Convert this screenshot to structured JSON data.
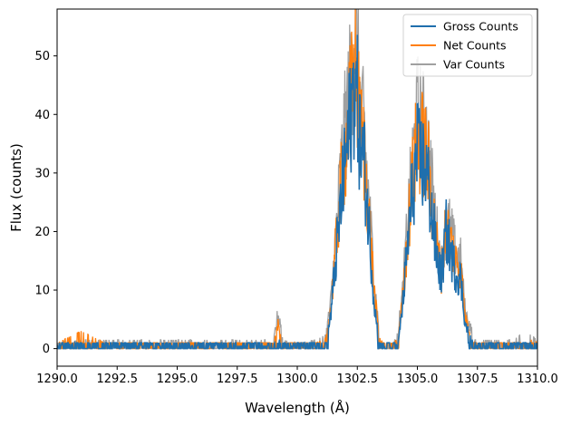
{
  "chart_data": {
    "type": "line",
    "title": "",
    "xlabel": "Wavelength (Å)",
    "ylabel": "Flux (counts)",
    "xlim": [
      1290.0,
      1310.0
    ],
    "ylim": [
      -3,
      58
    ],
    "xticks": [
      1290.0,
      1292.5,
      1295.0,
      1297.5,
      1300.0,
      1302.5,
      1305.0,
      1307.5,
      1310.0
    ],
    "xtick_labels": [
      "1290.0",
      "1292.5",
      "1295.0",
      "1297.5",
      "1300.0",
      "1302.5",
      "1305.0",
      "1307.5",
      "1310.0"
    ],
    "yticks": [
      0,
      10,
      20,
      30,
      40,
      50
    ],
    "ytick_labels": [
      "0",
      "10",
      "20",
      "30",
      "40",
      "50"
    ],
    "grid": false,
    "legend_position": "top-right",
    "series": [
      {
        "name": "Var Counts",
        "color": "#a0a0a0",
        "x": [
          1290.0,
          1291.0,
          1292.0,
          1293.0,
          1294.0,
          1295.0,
          1296.0,
          1297.0,
          1298.0,
          1299.0,
          1299.2,
          1299.4,
          1300.0,
          1300.8,
          1301.2,
          1301.4,
          1301.6,
          1301.8,
          1302.0,
          1302.2,
          1302.4,
          1302.5,
          1302.6,
          1302.8,
          1303.0,
          1303.2,
          1303.4,
          1303.6,
          1303.8,
          1304.0,
          1304.2,
          1304.4,
          1304.6,
          1304.8,
          1305.0,
          1305.2,
          1305.4,
          1305.6,
          1305.8,
          1306.0,
          1306.2,
          1306.4,
          1306.6,
          1306.8,
          1307.0,
          1307.4,
          1308.0,
          1309.0,
          1309.5,
          1310.0
        ],
        "y": [
          1.0,
          1.5,
          1.5,
          1.5,
          1.5,
          1.5,
          1.5,
          1.5,
          1.5,
          1.5,
          6.0,
          1.5,
          1.0,
          1.5,
          2.5,
          8.0,
          19.0,
          30.0,
          38.0,
          45.0,
          55.0,
          48.0,
          42.0,
          36.0,
          24.0,
          12.0,
          3.0,
          1.0,
          0.5,
          1.0,
          3.0,
          10.0,
          22.0,
          32.0,
          40.0,
          38.0,
          36.0,
          28.0,
          20.0,
          14.0,
          22.0,
          20.0,
          16.0,
          15.0,
          6.0,
          1.5,
          1.5,
          1.5,
          3.0,
          1.5
        ]
      },
      {
        "name": "Net Counts",
        "color": "#ff7f0e",
        "x": [
          1290.0,
          1291.0,
          1292.0,
          1293.0,
          1294.0,
          1295.0,
          1296.0,
          1297.0,
          1298.0,
          1299.0,
          1299.2,
          1299.4,
          1300.0,
          1300.8,
          1301.2,
          1301.4,
          1301.6,
          1301.8,
          1302.0,
          1302.2,
          1302.4,
          1302.5,
          1302.6,
          1302.8,
          1303.0,
          1303.2,
          1303.4,
          1303.6,
          1303.8,
          1304.0,
          1304.2,
          1304.4,
          1304.6,
          1304.8,
          1305.0,
          1305.2,
          1305.4,
          1305.6,
          1305.8,
          1306.0,
          1306.2,
          1306.4,
          1306.6,
          1306.8,
          1307.0,
          1307.4,
          1308.0,
          1309.0,
          1309.5,
          1310.0
        ],
        "y": [
          1.0,
          3.0,
          1.0,
          1.0,
          1.0,
          1.0,
          1.0,
          1.0,
          1.0,
          1.0,
          4.0,
          1.0,
          1.0,
          1.0,
          2.0,
          7.0,
          17.0,
          27.0,
          34.0,
          41.0,
          48.0,
          44.0,
          38.0,
          33.0,
          22.0,
          10.0,
          2.0,
          1.0,
          0.5,
          1.0,
          2.0,
          9.0,
          20.0,
          29.0,
          36.0,
          35.0,
          33.0,
          25.0,
          18.0,
          13.0,
          21.0,
          18.0,
          15.0,
          14.0,
          5.0,
          1.0,
          1.0,
          1.0,
          2.0,
          1.0
        ]
      },
      {
        "name": "Gross Counts",
        "color": "#1f6fad",
        "x": [
          1290.0,
          1291.0,
          1292.0,
          1293.0,
          1294.0,
          1295.0,
          1296.0,
          1297.0,
          1298.0,
          1299.0,
          1299.2,
          1299.4,
          1300.0,
          1300.8,
          1301.2,
          1301.4,
          1301.6,
          1301.8,
          1302.0,
          1302.2,
          1302.4,
          1302.5,
          1302.6,
          1302.8,
          1303.0,
          1303.2,
          1303.4,
          1303.6,
          1303.8,
          1304.0,
          1304.2,
          1304.4,
          1304.6,
          1304.8,
          1305.0,
          1305.2,
          1305.4,
          1305.6,
          1305.8,
          1306.0,
          1306.2,
          1306.4,
          1306.6,
          1306.8,
          1307.0,
          1307.4,
          1308.0,
          1309.0,
          1309.5,
          1310.0
        ],
        "y": [
          0.5,
          1.0,
          0.5,
          0.5,
          0.5,
          0.5,
          0.5,
          0.5,
          0.5,
          0.5,
          2.0,
          0.5,
          0.5,
          0.5,
          1.0,
          6.0,
          15.0,
          24.0,
          32.0,
          39.0,
          46.0,
          42.0,
          36.0,
          31.0,
          20.0,
          8.0,
          1.0,
          0.5,
          0.0,
          0.5,
          1.0,
          8.0,
          18.0,
          27.0,
          33.0,
          32.0,
          30.0,
          23.0,
          16.0,
          12.0,
          20.0,
          16.0,
          13.0,
          12.0,
          4.0,
          0.5,
          0.5,
          0.5,
          1.0,
          0.5
        ]
      }
    ],
    "legend_order": [
      "Gross Counts",
      "Net Counts",
      "Var Counts"
    ]
  }
}
